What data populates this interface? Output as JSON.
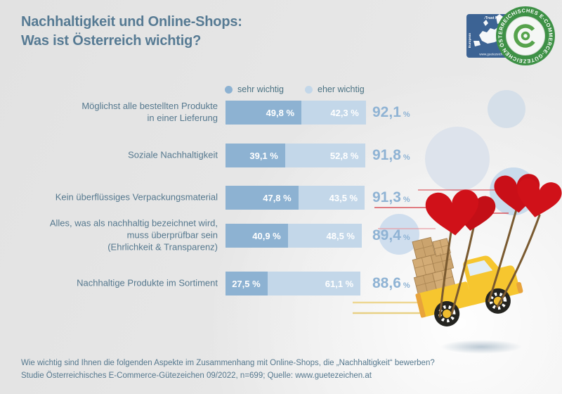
{
  "header": {
    "title_line1": "Nachhaltigkeit und Online-Shops:",
    "title_line2": "Was ist Österreich wichtig?"
  },
  "legend": {
    "items": [
      {
        "label": "sehr wichtig"
      },
      {
        "label": "eher wichtig"
      }
    ]
  },
  "chart_data": {
    "type": "bar",
    "orientation": "horizontal",
    "stacked": true,
    "unit": "%",
    "xlim": [
      0,
      100
    ],
    "series": [
      {
        "name": "sehr wichtig",
        "color": "#8db2d2",
        "values": [
          49.8,
          39.1,
          47.8,
          40.9,
          27.5
        ]
      },
      {
        "name": "eher wichtig",
        "color": "#c3d7e9",
        "values": [
          42.3,
          52.8,
          43.5,
          48.5,
          61.1
        ]
      }
    ],
    "categories": [
      "Möglichst alle bestellten Produkte in einer Lieferung",
      "Soziale Nachhaltigkeit",
      "Kein überflüssiges Verpackungsmaterial",
      "Alles, was als nachhaltig bezeichnet wird, muss überprüfbar sein (Ehrlichkeit & Transparenz)",
      "Nachhaltige Produkte im Sortiment"
    ],
    "totals": [
      92.1,
      91.8,
      91.3,
      89.4,
      88.6
    ],
    "rows": [
      {
        "label_lines": [
          "Möglichst alle bestellten Produkte",
          "in einer Lieferung"
        ],
        "values": [
          49.8,
          42.3
        ],
        "value_labels": [
          "49,8 %",
          "42,3 %"
        ],
        "total": 92.1,
        "total_label": "92,1"
      },
      {
        "label_lines": [
          "Soziale Nachhaltigkeit"
        ],
        "values": [
          39.1,
          52.8
        ],
        "value_labels": [
          "39,1 %",
          "52,8 %"
        ],
        "total": 91.8,
        "total_label": "91,8"
      },
      {
        "label_lines": [
          "Kein überflüssiges Verpackungsmaterial"
        ],
        "values": [
          47.8,
          43.5
        ],
        "value_labels": [
          "47,8 %",
          "43,5 %"
        ],
        "total": 91.3,
        "total_label": "91,3"
      },
      {
        "label_lines": [
          "Alles, was als nachhaltig bezeichnet wird,",
          "muss überprüfbar sein",
          "(Ehrlichkeit & Transparenz)"
        ],
        "values": [
          40.9,
          48.5
        ],
        "value_labels": [
          "40,9 %",
          "48,5 %"
        ],
        "total": 89.4,
        "total_label": "89,4"
      },
      {
        "label_lines": [
          "Nachhaltige Produkte im Sortiment"
        ],
        "values": [
          27.5,
          61.1
        ],
        "value_labels": [
          "27,5 %",
          "61,1 %"
        ],
        "total": 88.6,
        "total_label": "88,6"
      }
    ]
  },
  "footer": {
    "line1": "Wie wichtig sind Ihnen die folgenden Aspekte im Zusammenhang mit Online-Shops, die „Nachhaltigkeit“ bewerben?",
    "line2": "Studie Österreichisches E-Commerce-Gütezeichen 09/2022, n=699; Quelle: www.guetezeichen.at"
  },
  "logo": {
    "badge_text": "ÖSTERREICHISCHES E-COMMERCE-GÜTEZEICHEN",
    "trust_mark_top": "⁄Trust Mark",
    "trust_mark_side": "European",
    "url": "www.guetezeichen.at"
  },
  "colors": {
    "background": "#e4e4e4",
    "title": "#567a93",
    "bar_sehr_wichtig": "#8db2d2",
    "bar_eher_wichtig": "#c3d7e9",
    "total": "#8fb3d4",
    "legend_text": "#4b7283",
    "footer_text": "#55788e",
    "heart_red": "#d01119",
    "truck_yellow": "#f6c62f",
    "badge_green": "#3e9146",
    "trustmark_blue": "#3c6394"
  }
}
